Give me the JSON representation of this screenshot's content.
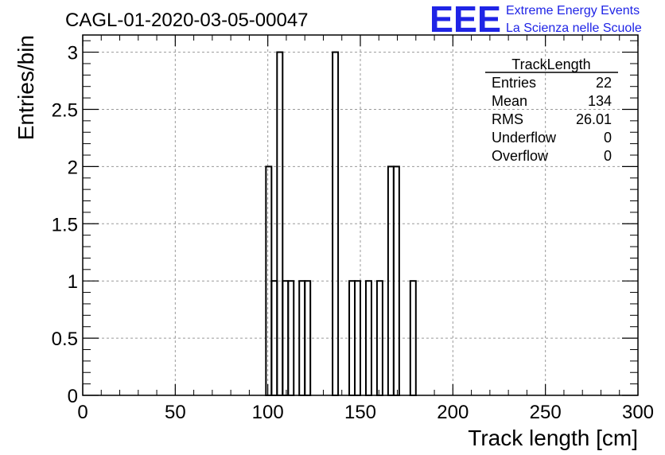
{
  "chart_data": {
    "type": "bar",
    "title": "CAGL-01-2020-03-05-00047",
    "xlabel": "Track length [cm]",
    "ylabel": "Entries/bin",
    "xlim": [
      0,
      300
    ],
    "ylim": [
      0,
      3.15
    ],
    "grid": true,
    "x_ticks": [
      "0",
      "50",
      "100",
      "150",
      "200",
      "250",
      "300"
    ],
    "y_ticks": [
      "0",
      "0.5",
      "1",
      "1.5",
      "2",
      "2.5",
      "3"
    ],
    "bin_width": 3,
    "bins": [
      {
        "x": 99,
        "y": 2
      },
      {
        "x": 102,
        "y": 1
      },
      {
        "x": 105,
        "y": 3
      },
      {
        "x": 108,
        "y": 1
      },
      {
        "x": 111,
        "y": 1
      },
      {
        "x": 117,
        "y": 1
      },
      {
        "x": 120,
        "y": 1
      },
      {
        "x": 135,
        "y": 3
      },
      {
        "x": 144,
        "y": 1
      },
      {
        "x": 147,
        "y": 1
      },
      {
        "x": 153,
        "y": 1
      },
      {
        "x": 159,
        "y": 1
      },
      {
        "x": 165,
        "y": 2
      },
      {
        "x": 168,
        "y": 2
      },
      {
        "x": 177,
        "y": 1
      }
    ],
    "stats_box": {
      "title": "TrackLength",
      "rows": [
        {
          "label": "Entries",
          "value": "22"
        },
        {
          "label": "Mean",
          "value": "134"
        },
        {
          "label": "RMS",
          "value": "26.01"
        },
        {
          "label": "Underflow",
          "value": "0"
        },
        {
          "label": "Overflow",
          "value": "0"
        }
      ]
    },
    "colors": {
      "line": "#000000",
      "grid": "#9a9a9a",
      "logo": "#1f24e6"
    }
  },
  "logo": {
    "mark": "EEE",
    "line1": "Extreme Energy Events",
    "line2": "La Scienza nelle Scuole"
  }
}
